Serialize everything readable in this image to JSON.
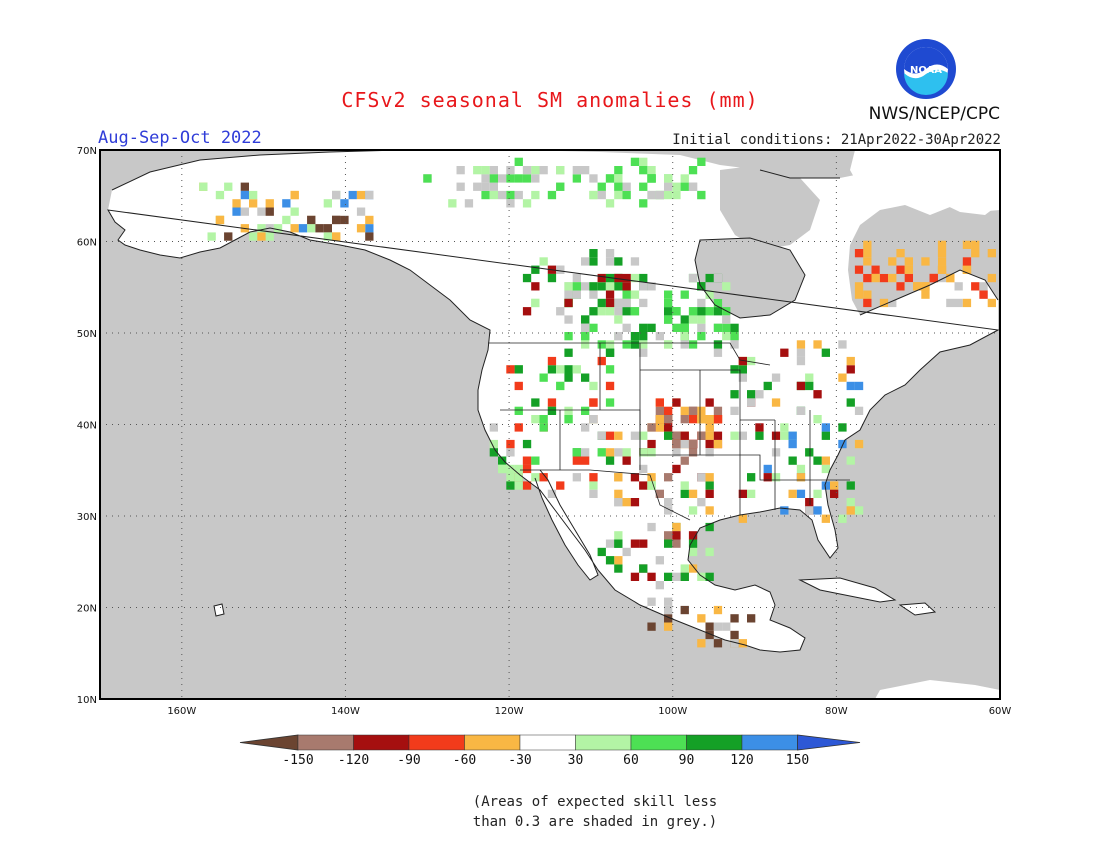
{
  "title": "CFSv2 seasonal SM anomalies (mm)",
  "period": "Aug-Sep-Oct 2022",
  "initial_conditions": "Initial conditions: 21Apr2022-30Apr2022",
  "agency": "NWS/NCEP/CPC",
  "logo_text": "NOAA",
  "note": [
    "(Areas of expected skill less",
    "than 0.3 are shaded in grey.)"
  ],
  "lat_labels": [
    "70N",
    "60N",
    "50N",
    "40N",
    "30N",
    "20N",
    "10N"
  ],
  "lon_labels": [
    "160W",
    "140W",
    "120W",
    "100W",
    "80W",
    "60W"
  ],
  "colorbar": {
    "labels": [
      "-150",
      "-120",
      "-90",
      "-60",
      "-30",
      "30",
      "60",
      "90",
      "120",
      "150"
    ],
    "colors": [
      "#6b4431",
      "#a87a6e",
      "#a50f0f",
      "#f23b1b",
      "#f9b744",
      "#ffffff",
      "#b3f4a5",
      "#4de054",
      "#14a026",
      "#3c8fe6",
      "#2d58d6"
    ]
  },
  "colors": {
    "grey_mask": "#c8c8c8",
    "ocean": "#c8c8c8",
    "land": "#ffffff"
  }
}
